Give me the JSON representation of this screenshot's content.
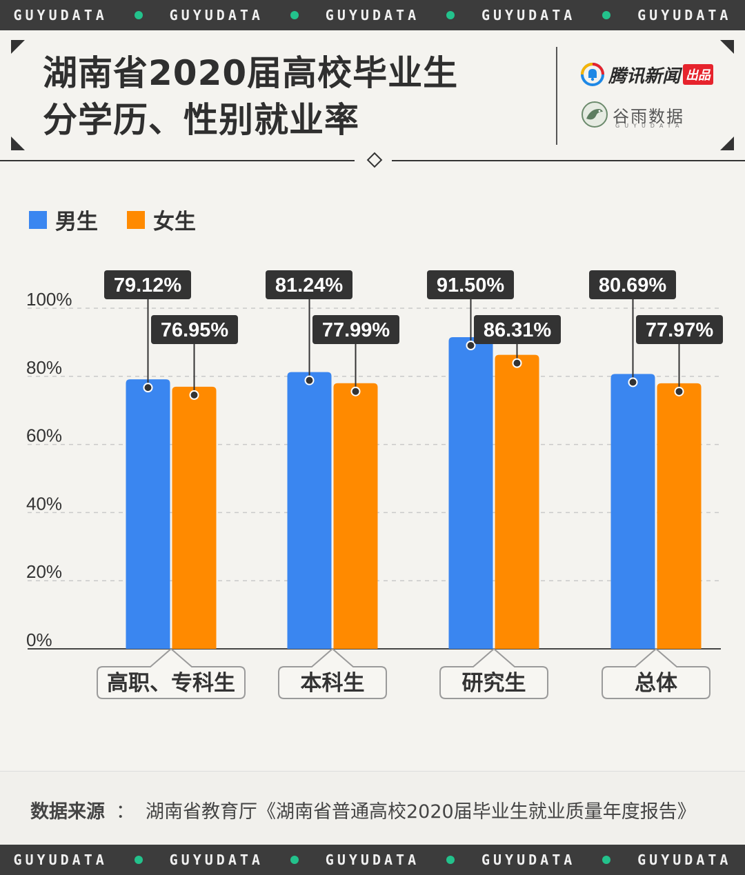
{
  "banner": {
    "items": [
      "GUYUDATA",
      "GUYUDATA",
      "GUYUDATA",
      "GUYUDATA",
      "GUYUDATA"
    ],
    "dot_color": "#23c28c"
  },
  "header": {
    "title_line1": "湖南省2020届高校毕业生",
    "title_line2": "分学历、性别就业率",
    "logo_tencent": "腾讯新闻",
    "logo_tencent_badge": "出品",
    "logo_guyu": "谷雨数据",
    "logo_guyu_sub": "GUYUDATA"
  },
  "legend": [
    {
      "label": "男生",
      "color": "#3a86f0"
    },
    {
      "label": "女生",
      "color": "#ff8a00"
    }
  ],
  "chart_data": {
    "type": "bar",
    "categories": [
      "高职、专科生",
      "本科生",
      "研究生",
      "总体"
    ],
    "series": [
      {
        "name": "男生",
        "color": "#3a86f0",
        "values": [
          79.12,
          81.24,
          91.5,
          80.69
        ],
        "labels": [
          "79.12%",
          "81.24%",
          "91.50%",
          "80.69%"
        ]
      },
      {
        "name": "女生",
        "color": "#ff8a00",
        "values": [
          76.95,
          77.99,
          86.31,
          77.97
        ],
        "labels": [
          "76.95%",
          "77.99%",
          "86.31%",
          "77.97%"
        ]
      }
    ],
    "ylim": [
      0,
      100
    ],
    "yticks": [
      "0%",
      "20%",
      "40%",
      "60%",
      "80%",
      "100%"
    ],
    "grid": true,
    "legend_position": "top-left"
  },
  "source": {
    "key": "数据来源",
    "sep": "：",
    "text": "湖南省教育厅《湖南省普通高校2020届毕业生就业质量年度报告》"
  }
}
